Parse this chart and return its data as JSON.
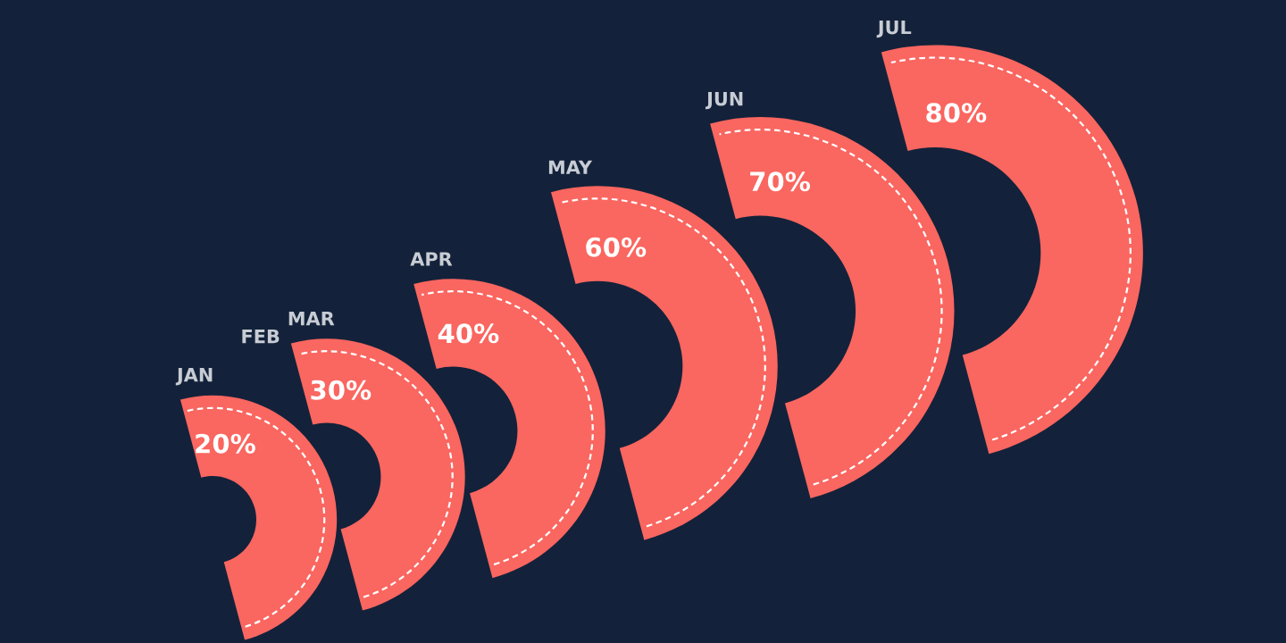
{
  "chart_data": {
    "type": "other",
    "categories": [
      "JAN",
      "FEB",
      "MAR",
      "APR",
      "MAY",
      "JUN",
      "JUL"
    ],
    "values": [
      20,
      null,
      30,
      40,
      60,
      70,
      80
    ],
    "value_labels": [
      "20%",
      null,
      "30%",
      "40%",
      "60%",
      "70%",
      "80%"
    ],
    "color": "#fa6660"
  }
}
